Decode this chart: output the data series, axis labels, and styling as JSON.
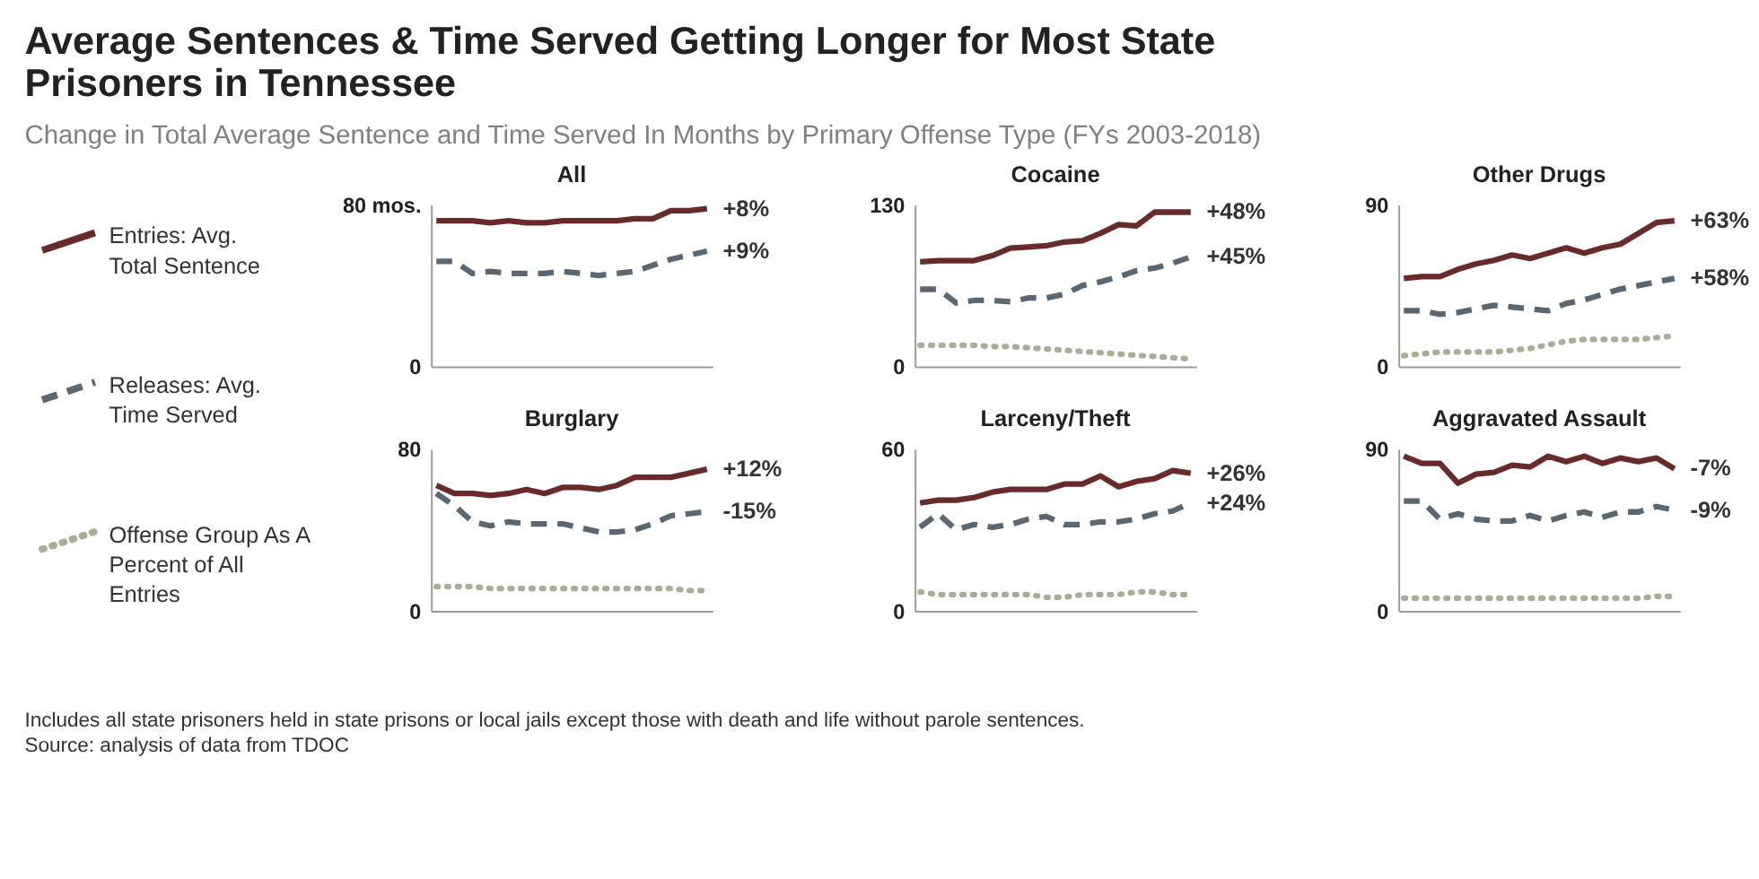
{
  "chart_data": [
    {
      "type": "other",
      "title": "Average Sentences & Time Served Getting Longer for Most State Prisoners in Tennessee",
      "subtitle": "Change in Total Average Sentence and Time Served In Months by Primary Offense Type (FYs 2003-2018)",
      "annotations": [
        "Includes all state prisoners held in state prisons or local jails except those with death and life without parole sentences.",
        "Source: analysis of data from TDOC"
      ]
    },
    {
      "type": "line",
      "title": "All",
      "categories": [
        null,
        null,
        null,
        null,
        null,
        null,
        null,
        null,
        null,
        null,
        null,
        null,
        null,
        null,
        null,
        null
      ],
      "ylim": [
        0,
        80
      ],
      "yticks": [
        0,
        {
          "value": 80,
          "label": "80 mos."
        }
      ],
      "tick_labels": "y",
      "series": [
        {
          "color": "#6b2a2a",
          "line_style": "solid",
          "values": [
            72,
            72,
            72,
            71,
            72,
            71,
            71,
            72,
            72,
            72,
            72,
            73,
            73,
            77,
            77,
            78
          ]
        },
        {
          "color": "#5b6770",
          "line_style": "dashed",
          "values": [
            52,
            52,
            46,
            47,
            46,
            46,
            46,
            47,
            46,
            45,
            46,
            47,
            50,
            53,
            55,
            57
          ]
        }
      ],
      "annotations": [
        "+8%",
        "+9%"
      ]
    },
    {
      "type": "line",
      "title": "Cocaine",
      "categories": [
        null,
        null,
        null,
        null,
        null,
        null,
        null,
        null,
        null,
        null,
        null,
        null,
        null,
        null,
        null,
        null
      ],
      "ylim": [
        0,
        130
      ],
      "yticks": [
        0,
        130
      ],
      "tick_labels": "y",
      "legend": "left",
      "series": [
        {
          "name": "Entries: Avg. Total Sentence",
          "color": "#6b2a2a",
          "line_style": "solid",
          "values": [
            84,
            85,
            85,
            85,
            89,
            95,
            96,
            97,
            100,
            101,
            107,
            114,
            113,
            124,
            124,
            124
          ]
        },
        {
          "name": "Releases: Avg. Time Served",
          "color": "#5b6770",
          "line_style": "dashed",
          "values": [
            62,
            62,
            51,
            53,
            53,
            52,
            55,
            55,
            58,
            65,
            68,
            72,
            77,
            79,
            83,
            88
          ]
        },
        {
          "name": "Offense Group As A Percent of All Entries",
          "color": "#a8ad95",
          "line_style": "dotted",
          "values": [
            17,
            17,
            17,
            17,
            16,
            16,
            15,
            14,
            13,
            12,
            11,
            10,
            9,
            8,
            7,
            6
          ]
        }
      ],
      "annotations": [
        "+48%",
        "+45%"
      ]
    },
    {
      "type": "line",
      "title": "Other Drugs",
      "categories": [
        null,
        null,
        null,
        null,
        null,
        null,
        null,
        null,
        null,
        null,
        null,
        null,
        null,
        null,
        null,
        null
      ],
      "ylim": [
        0,
        90
      ],
      "yticks": [
        0,
        90
      ],
      "tick_labels": "y",
      "series": [
        {
          "color": "#6b2a2a",
          "line_style": "solid",
          "values": [
            49,
            50,
            50,
            54,
            57,
            59,
            62,
            60,
            63,
            66,
            63,
            66,
            68,
            74,
            80,
            81
          ]
        },
        {
          "color": "#5b6770",
          "line_style": "dashed",
          "values": [
            31,
            31,
            29,
            30,
            32,
            34,
            33,
            32,
            31,
            35,
            37,
            40,
            43,
            45,
            47,
            49
          ]
        },
        {
          "color": "#a8ad95",
          "line_style": "dotted",
          "values": [
            6,
            7,
            8,
            8,
            8,
            8,
            9,
            10,
            12,
            14,
            15,
            15,
            15,
            15,
            16,
            17
          ]
        }
      ],
      "annotations": [
        "+63%",
        "+58%"
      ]
    },
    {
      "type": "line",
      "title": "Burglary",
      "categories": [
        null,
        null,
        null,
        null,
        null,
        null,
        null,
        null,
        null,
        null,
        null,
        null,
        null,
        null,
        null,
        null
      ],
      "ylim": [
        0,
        80
      ],
      "yticks": [
        0,
        80
      ],
      "tick_labels": "y",
      "series": [
        {
          "color": "#6b2a2a",
          "line_style": "solid",
          "values": [
            62,
            58,
            58,
            57,
            58,
            60,
            58,
            61,
            61,
            60,
            62,
            66,
            66,
            66,
            68,
            70
          ]
        },
        {
          "color": "#5b6770",
          "line_style": "dashed",
          "values": [
            58,
            52,
            44,
            42,
            44,
            43,
            43,
            43,
            41,
            39,
            39,
            40,
            43,
            47,
            48,
            49
          ]
        },
        {
          "color": "#a8ad95",
          "line_style": "dotted",
          "values": [
            12,
            12,
            12,
            11,
            11,
            11,
            11,
            11,
            11,
            11,
            11,
            11,
            11,
            11,
            10,
            10
          ]
        }
      ],
      "annotations": [
        "+12%",
        "-15%"
      ]
    },
    {
      "type": "line",
      "title": "Larceny/Theft",
      "categories": [
        null,
        null,
        null,
        null,
        null,
        null,
        null,
        null,
        null,
        null,
        null,
        null,
        null,
        null,
        null,
        null
      ],
      "ylim": [
        0,
        60
      ],
      "yticks": [
        0,
        60
      ],
      "tick_labels": "y",
      "series": [
        {
          "color": "#6b2a2a",
          "line_style": "solid",
          "values": [
            40,
            41,
            41,
            42,
            44,
            45,
            45,
            45,
            47,
            47,
            50,
            46,
            48,
            49,
            52,
            51
          ]
        },
        {
          "color": "#5b6770",
          "line_style": "dashed",
          "values": [
            31,
            36,
            30,
            32,
            31,
            32,
            34,
            35,
            32,
            32,
            33,
            33,
            34,
            36,
            37,
            40
          ]
        },
        {
          "color": "#a8ad95",
          "line_style": "dotted",
          "values": [
            7,
            6,
            6,
            6,
            6,
            6,
            6,
            5,
            5,
            6,
            6,
            6,
            7,
            7,
            6,
            6
          ]
        }
      ],
      "annotations": [
        "+26%",
        "+24%"
      ]
    },
    {
      "type": "line",
      "title": "Aggravated Assault",
      "categories": [
        null,
        null,
        null,
        null,
        null,
        null,
        null,
        null,
        null,
        null,
        null,
        null,
        null,
        null,
        null,
        null
      ],
      "ylim": [
        0,
        90
      ],
      "yticks": [
        0,
        90
      ],
      "tick_labels": "y",
      "series": [
        {
          "color": "#6b2a2a",
          "line_style": "solid",
          "values": [
            86,
            82,
            82,
            71,
            76,
            77,
            81,
            80,
            86,
            83,
            86,
            82,
            85,
            83,
            85,
            79
          ]
        },
        {
          "color": "#5b6770",
          "line_style": "dashed",
          "values": [
            61,
            61,
            51,
            54,
            51,
            50,
            50,
            53,
            50,
            53,
            55,
            52,
            55,
            55,
            58,
            56
          ]
        },
        {
          "color": "#a8ad95",
          "line_style": "dotted",
          "values": [
            7,
            7,
            7,
            7,
            7,
            7,
            7,
            7,
            7,
            7,
            7,
            7,
            7,
            7,
            8,
            8
          ]
        }
      ],
      "annotations": [
        "-7%",
        "-9%"
      ]
    }
  ]
}
